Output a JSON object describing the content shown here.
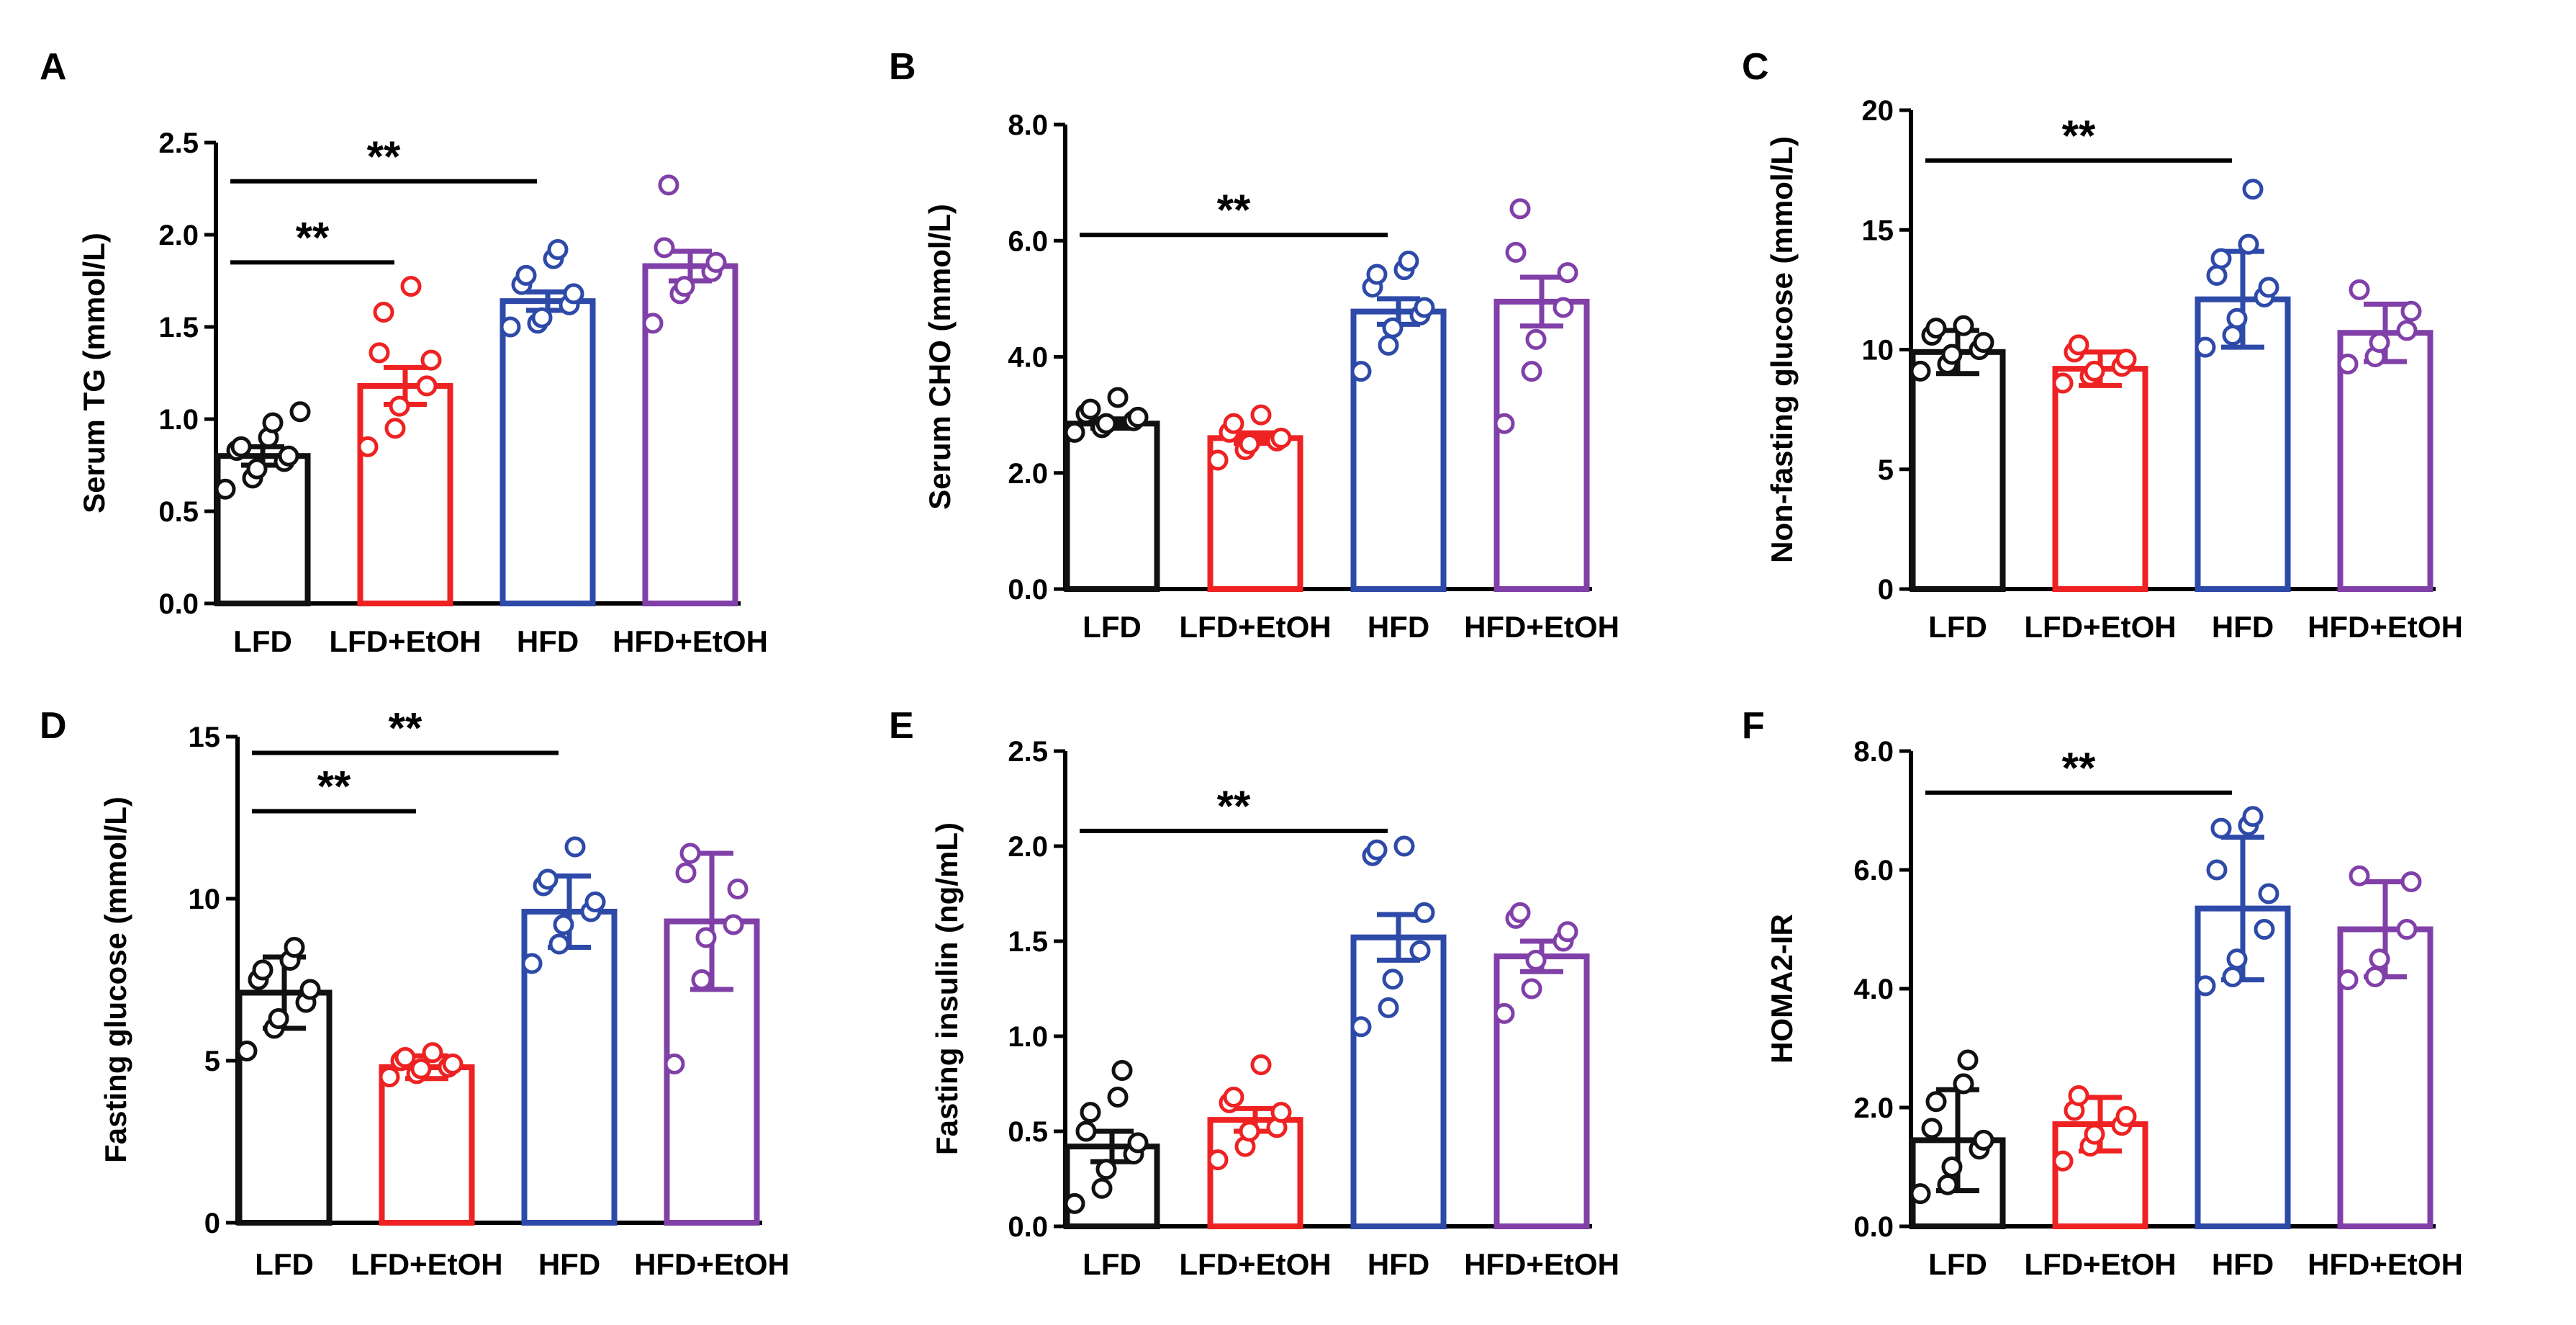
{
  "colors": {
    "LFD": "#111111",
    "LFD+EtOH": "#ee2222",
    "HFD": "#2e4aa8",
    "HFD+EtOH": "#8040a8"
  },
  "chart_data": [
    {
      "panel": "A",
      "type": "bar",
      "title": "",
      "xlabel": "",
      "ylabel": "Serum TG (mmol/L)",
      "categories": [
        "LFD",
        "LFD+EtOH",
        "HFD",
        "HFD+EtOH"
      ],
      "ylim": [
        0,
        2.5
      ],
      "yticks": [
        "0.0",
        "0.5",
        "1.0",
        "1.5",
        "2.0",
        "2.5"
      ],
      "values": [
        0.8,
        1.18,
        1.64,
        1.83
      ],
      "errors": [
        0.05,
        0.1,
        0.05,
        0.08
      ],
      "points": [
        [
          0.62,
          0.68,
          0.73,
          0.77,
          0.8,
          0.83,
          0.85,
          0.9,
          0.98,
          1.04
        ],
        [
          0.85,
          0.95,
          1.07,
          1.18,
          1.32,
          1.36,
          1.58,
          1.72
        ],
        [
          1.5,
          1.52,
          1.55,
          1.62,
          1.68,
          1.73,
          1.78,
          1.87,
          1.92
        ],
        [
          1.52,
          1.68,
          1.72,
          1.8,
          1.85,
          1.93,
          2.27
        ]
      ],
      "significance": [
        {
          "from": 0,
          "to": 2,
          "label": "**",
          "level": 2.29
        },
        {
          "from": 0,
          "to": 1,
          "label": "**",
          "level": 1.85
        }
      ]
    },
    {
      "panel": "B",
      "type": "bar",
      "title": "",
      "xlabel": "",
      "ylabel": "Serum CHO (mmol/L)",
      "categories": [
        "LFD",
        "LFD+EtOH",
        "HFD",
        "HFD+EtOH"
      ],
      "ylim": [
        0,
        8
      ],
      "yticks": [
        "0.0",
        "2.0",
        "4.0",
        "6.0",
        "8.0"
      ],
      "values": [
        2.85,
        2.6,
        4.78,
        4.95
      ],
      "errors": [
        0.08,
        0.09,
        0.22,
        0.42
      ],
      "points": [
        [
          2.7,
          2.78,
          2.85,
          2.9,
          2.96,
          3.02,
          3.1,
          3.3
        ],
        [
          2.22,
          2.4,
          2.5,
          2.55,
          2.6,
          2.7,
          2.85,
          3.0
        ],
        [
          3.75,
          4.2,
          4.5,
          4.72,
          4.85,
          5.2,
          5.42,
          5.5,
          5.65
        ],
        [
          2.85,
          3.75,
          4.3,
          4.85,
          5.45,
          5.8,
          6.55
        ]
      ],
      "significance": [
        {
          "from": 0,
          "to": 2,
          "label": "**",
          "level": 6.1
        }
      ]
    },
    {
      "panel": "C",
      "type": "bar",
      "title": "",
      "xlabel": "",
      "ylabel": "Non-fasting glucose (mmol/L)",
      "categories": [
        "LFD",
        "LFD+EtOH",
        "HFD",
        "HFD+EtOH"
      ],
      "ylim": [
        0,
        20
      ],
      "yticks": [
        "0",
        "5",
        "10",
        "15",
        "20"
      ],
      "values": [
        9.9,
        9.2,
        12.1,
        10.7
      ],
      "errors": [
        0.9,
        0.7,
        2.0,
        1.2
      ],
      "points": [
        [
          9.1,
          9.4,
          9.8,
          10.0,
          10.3,
          10.6,
          10.9,
          11.0
        ],
        [
          8.6,
          8.9,
          9.1,
          9.3,
          9.6,
          9.9,
          10.2
        ],
        [
          10.1,
          10.6,
          11.3,
          12.2,
          12.6,
          13.1,
          13.8,
          14.4,
          16.7
        ],
        [
          9.4,
          9.7,
          10.3,
          10.8,
          11.6,
          12.5
        ]
      ],
      "significance": [
        {
          "from": 0,
          "to": 2,
          "label": "**",
          "level": 17.9
        }
      ]
    },
    {
      "panel": "D",
      "type": "bar",
      "title": "",
      "xlabel": "",
      "ylabel": "Fasting glucose (mmol/L)",
      "categories": [
        "LFD",
        "LFD+EtOH",
        "HFD",
        "HFD+EtOH"
      ],
      "ylim": [
        0,
        15
      ],
      "yticks": [
        "0",
        "5",
        "10",
        "15"
      ],
      "values": [
        7.1,
        4.8,
        9.6,
        9.3
      ],
      "errors": [
        1.1,
        0.35,
        1.1,
        2.1
      ],
      "points": [
        [
          5.3,
          6.0,
          6.3,
          6.8,
          7.2,
          7.5,
          7.8,
          8.1,
          8.5
        ],
        [
          4.5,
          4.6,
          4.75,
          4.8,
          4.9,
          5.0,
          5.1,
          5.25
        ],
        [
          8.0,
          8.6,
          9.2,
          9.6,
          9.9,
          10.4,
          10.6,
          11.6
        ],
        [
          4.9,
          7.5,
          8.8,
          9.2,
          10.3,
          10.8,
          11.4
        ]
      ],
      "significance": [
        {
          "from": 0,
          "to": 2,
          "label": "**",
          "level": 14.5
        },
        {
          "from": 0,
          "to": 1,
          "label": "**",
          "level": 12.7
        }
      ]
    },
    {
      "panel": "E",
      "type": "bar",
      "title": "",
      "xlabel": "",
      "ylabel": "Fasting insulin (ng/mL)",
      "categories": [
        "LFD",
        "LFD+EtOH",
        "HFD",
        "HFD+EtOH"
      ],
      "ylim": [
        0,
        2.5
      ],
      "yticks": [
        "0.0",
        "0.5",
        "1.0",
        "1.5",
        "2.0",
        "2.5"
      ],
      "values": [
        0.42,
        0.56,
        1.52,
        1.42
      ],
      "errors": [
        0.08,
        0.06,
        0.12,
        0.08
      ],
      "points": [
        [
          0.12,
          0.2,
          0.3,
          0.38,
          0.44,
          0.5,
          0.6,
          0.68,
          0.82
        ],
        [
          0.35,
          0.42,
          0.5,
          0.52,
          0.6,
          0.65,
          0.68,
          0.85
        ],
        [
          1.05,
          1.15,
          1.3,
          1.45,
          1.65,
          1.95,
          1.98,
          2.0
        ],
        [
          1.12,
          1.25,
          1.4,
          1.5,
          1.55,
          1.62,
          1.65
        ]
      ],
      "significance": [
        {
          "from": 0,
          "to": 2,
          "label": "**",
          "level": 2.08
        }
      ]
    },
    {
      "panel": "F",
      "type": "bar",
      "title": "",
      "xlabel": "",
      "ylabel": "HOMA2-IR",
      "categories": [
        "LFD",
        "LFD+EtOH",
        "HFD",
        "HFD+EtOH"
      ],
      "ylim": [
        0,
        8
      ],
      "yticks": [
        "0.0",
        "2.0",
        "4.0",
        "6.0",
        "8.0"
      ],
      "values": [
        1.45,
        1.72,
        5.35,
        5.0
      ],
      "errors": [
        0.85,
        0.45,
        1.2,
        0.8
      ],
      "points": [
        [
          0.55,
          0.7,
          1.0,
          1.3,
          1.45,
          1.65,
          2.1,
          2.4,
          2.8
        ],
        [
          1.1,
          1.35,
          1.55,
          1.7,
          1.85,
          1.95,
          2.2
        ],
        [
          4.05,
          4.2,
          4.5,
          5.0,
          5.6,
          6.0,
          6.7,
          6.75,
          6.9
        ],
        [
          4.15,
          4.2,
          4.5,
          5.0,
          5.8,
          5.9
        ]
      ],
      "significance": [
        {
          "from": 0,
          "to": 2,
          "label": "**",
          "level": 7.3
        }
      ]
    }
  ]
}
